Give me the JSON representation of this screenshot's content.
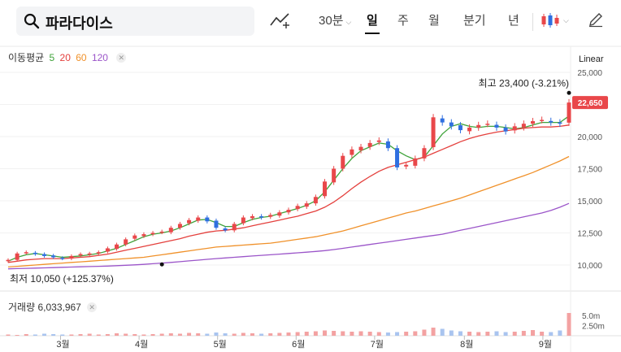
{
  "search": {
    "query": "파라다이스",
    "icon": "search-icon"
  },
  "toolbar": {
    "draw_icon": "trend-line-icon",
    "interval": "30분",
    "periods": [
      "일",
      "주",
      "월",
      "분기",
      "년"
    ],
    "active_period": "일",
    "candle_icon": "candlestick-icon",
    "pen_icon": "pencil-icon"
  },
  "moving_average": {
    "label": "이동평균",
    "lines": [
      {
        "period": "5",
        "color": "#3fa33a"
      },
      {
        "period": "20",
        "color": "#e4403d"
      },
      {
        "period": "60",
        "color": "#f0912a"
      },
      {
        "period": "120",
        "color": "#9b55c9"
      }
    ]
  },
  "scale_mode": "Linear",
  "volume": {
    "label": "거래량",
    "value": "6,033,967",
    "ticks": [
      "5.0m",
      "2.50m"
    ]
  },
  "colors": {
    "up": "#e9474a",
    "down": "#2f6fe0",
    "vol_up": "#f3a2a2",
    "vol_down": "#a9c4ef",
    "current_bg": "#e9474a"
  },
  "chart_data": {
    "type": "candlestick",
    "y_ticks": [
      "25,000",
      "22,500",
      "20,000",
      "17,500",
      "15,000",
      "12,500",
      "10,000"
    ],
    "ylim": [
      9000,
      25000
    ],
    "x_ticks": [
      "3월",
      "4월",
      "5월",
      "6월",
      "7월",
      "8월",
      "9월"
    ],
    "high_annotation": {
      "label": "최고",
      "value": "23,400",
      "change": "(-3.21%)"
    },
    "low_annotation": {
      "label": "최저",
      "value": "10,050",
      "change": "(+125.37%)"
    },
    "current_price": "22,650",
    "close_path": [
      10400,
      10900,
      11000,
      10850,
      10700,
      10600,
      10500,
      10700,
      10850,
      10900,
      11000,
      11300,
      11600,
      12000,
      12300,
      12400,
      12500,
      12600,
      12900,
      13200,
      13500,
      13700,
      13400,
      12900,
      12700,
      13200,
      13700,
      13800,
      13700,
      13900,
      14100,
      14300,
      14600,
      14800,
      15300,
      16500,
      17500,
      18500,
      19000,
      19200,
      19500,
      19700,
      19100,
      17600,
      17800,
      18300,
      19100,
      21500,
      21100,
      20800,
      20500,
      20700,
      20900,
      21000,
      20700,
      20400,
      20800,
      21000,
      21200,
      21300,
      21100,
      21000,
      22650
    ],
    "ma5": [
      10300,
      10600,
      10800,
      10900,
      10800,
      10700,
      10600,
      10650,
      10700,
      10800,
      10900,
      11100,
      11300,
      11600,
      11900,
      12200,
      12400,
      12500,
      12650,
      12900,
      13200,
      13500,
      13550,
      13300,
      13000,
      13000,
      13300,
      13550,
      13700,
      13800,
      14000,
      14200,
      14400,
      14650,
      15000,
      15700,
      16600,
      17500,
      18300,
      18900,
      19200,
      19500,
      19400,
      18900,
      18500,
      18200,
      18400,
      19300,
      20200,
      20800,
      21000,
      20800,
      20700,
      20800,
      20800,
      20700,
      20600,
      20700,
      20900,
      21100,
      21100,
      21100,
      21600
    ],
    "ma20": [
      10200,
      10300,
      10400,
      10450,
      10500,
      10500,
      10500,
      10550,
      10600,
      10650,
      10750,
      10850,
      11000,
      11150,
      11300,
      11450,
      11600,
      11750,
      11900,
      12050,
      12250,
      12400,
      12550,
      12650,
      12700,
      12800,
      12900,
      13050,
      13200,
      13350,
      13500,
      13650,
      13800,
      14000,
      14200,
      14500,
      14900,
      15400,
      15950,
      16450,
      16900,
      17300,
      17600,
      17800,
      18000,
      18200,
      18400,
      18700,
      19000,
      19300,
      19600,
      19850,
      20050,
      20200,
      20350,
      20450,
      20550,
      20650,
      20700,
      20750,
      20750,
      20800,
      20900
    ],
    "ma60": [
      9850,
      9900,
      9950,
      10000,
      10050,
      10100,
      10150,
      10200,
      10250,
      10300,
      10350,
      10400,
      10450,
      10500,
      10550,
      10600,
      10700,
      10800,
      10900,
      11000,
      11100,
      11200,
      11300,
      11400,
      11450,
      11500,
      11550,
      11600,
      11650,
      11700,
      11800,
      11900,
      12000,
      12100,
      12200,
      12350,
      12500,
      12650,
      12850,
      13050,
      13250,
      13450,
      13650,
      13850,
      14050,
      14200,
      14400,
      14600,
      14800,
      15000,
      15200,
      15450,
      15700,
      15950,
      16200,
      16450,
      16700,
      16950,
      17200,
      17500,
      17800,
      18100,
      18450
    ],
    "ma120": [
      9700,
      9720,
      9740,
      9760,
      9780,
      9800,
      9820,
      9840,
      9860,
      9880,
      9900,
      9920,
      9950,
      9980,
      10010,
      10050,
      10100,
      10150,
      10200,
      10260,
      10320,
      10380,
      10440,
      10500,
      10550,
      10600,
      10650,
      10700,
      10750,
      10800,
      10850,
      10900,
      10950,
      11000,
      11060,
      11120,
      11200,
      11300,
      11400,
      11500,
      11600,
      11700,
      11800,
      11900,
      12000,
      12100,
      12200,
      12300,
      12400,
      12550,
      12700,
      12850,
      13000,
      13150,
      13300,
      13450,
      13600,
      13750,
      13900,
      14050,
      14250,
      14500,
      14800
    ],
    "volume_m": [
      0.3,
      0.2,
      0.4,
      0.3,
      0.5,
      0.4,
      0.3,
      0.3,
      0.4,
      0.5,
      0.3,
      0.4,
      0.6,
      0.5,
      0.4,
      0.3,
      0.4,
      0.5,
      0.6,
      0.5,
      0.7,
      0.6,
      0.5,
      0.8,
      0.6,
      0.5,
      0.7,
      0.6,
      0.5,
      0.6,
      0.7,
      0.8,
      0.9,
      1.0,
      1.1,
      1.3,
      1.2,
      1.1,
      1.0,
      1.1,
      1.0,
      0.9,
      0.8,
      0.9,
      1.0,
      1.1,
      1.5,
      2.0,
      1.7,
      1.3,
      1.1,
      1.0,
      0.9,
      1.0,
      1.1,
      0.9,
      1.0,
      1.2,
      1.4,
      1.0,
      0.9,
      1.3,
      6.0
    ]
  }
}
